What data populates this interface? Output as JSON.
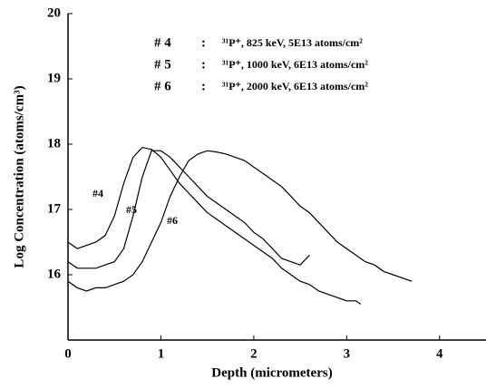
{
  "chart_data": {
    "type": "line",
    "x_label": "Depth (micrometers)",
    "y_label": "Log Concentration (atoms/cm³)",
    "xlim": [
      0,
      4.5
    ],
    "xticks": [
      0,
      1,
      2,
      3,
      4
    ],
    "ylim": [
      15,
      20
    ],
    "yticks": [
      16,
      17,
      18,
      19,
      20
    ],
    "series": [
      {
        "name": "# 4",
        "description": "³¹P⁺, 825 keV, 5E13 atoms/cm²",
        "color": "#000000",
        "x": [
          0,
          0.1,
          0.2,
          0.3,
          0.4,
          0.5,
          0.6,
          0.7,
          0.8,
          0.9,
          1.0,
          1.1,
          1.2,
          1.3,
          1.4,
          1.5,
          1.6,
          1.7,
          1.8,
          1.9,
          2.0,
          2.1,
          2.2,
          2.3,
          2.4,
          2.5,
          2.6,
          2.7,
          2.8,
          2.9,
          3.0,
          3.1,
          3.15
        ],
        "values": [
          16.5,
          16.4,
          16.45,
          16.5,
          16.6,
          16.9,
          17.4,
          17.8,
          17.95,
          17.92,
          17.8,
          17.6,
          17.4,
          17.25,
          17.1,
          16.95,
          16.85,
          16.75,
          16.65,
          16.55,
          16.45,
          16.35,
          16.25,
          16.1,
          16.0,
          15.9,
          15.85,
          15.75,
          15.7,
          15.65,
          15.6,
          15.6,
          15.55
        ]
      },
      {
        "name": "# 5",
        "description": "³¹P⁺, 1000 keV, 6E13 atoms/cm²",
        "color": "#000000",
        "x": [
          0,
          0.1,
          0.2,
          0.3,
          0.4,
          0.5,
          0.6,
          0.7,
          0.8,
          0.9,
          1.0,
          1.1,
          1.2,
          1.3,
          1.4,
          1.5,
          1.6,
          1.7,
          1.8,
          1.9,
          2.0,
          2.1,
          2.2,
          2.3,
          2.4,
          2.5,
          2.6
        ],
        "values": [
          16.2,
          16.1,
          16.1,
          16.1,
          16.15,
          16.2,
          16.4,
          16.9,
          17.5,
          17.9,
          17.9,
          17.8,
          17.65,
          17.5,
          17.35,
          17.2,
          17.1,
          17.0,
          16.9,
          16.8,
          16.65,
          16.55,
          16.4,
          16.25,
          16.2,
          16.15,
          16.3
        ]
      },
      {
        "name": "# 6",
        "description": "³¹P⁺, 2000 keV, 6E13 atoms/cm²",
        "color": "#000000",
        "x": [
          0,
          0.1,
          0.2,
          0.3,
          0.4,
          0.5,
          0.6,
          0.7,
          0.8,
          0.9,
          1.0,
          1.1,
          1.2,
          1.3,
          1.4,
          1.5,
          1.6,
          1.7,
          1.8,
          1.9,
          2.0,
          2.1,
          2.2,
          2.3,
          2.4,
          2.5,
          2.6,
          2.7,
          2.8,
          2.9,
          3.0,
          3.1,
          3.2,
          3.3,
          3.4,
          3.5,
          3.6,
          3.7
        ],
        "values": [
          15.9,
          15.8,
          15.75,
          15.8,
          15.8,
          15.85,
          15.9,
          16.0,
          16.2,
          16.5,
          16.8,
          17.2,
          17.5,
          17.75,
          17.85,
          17.9,
          17.88,
          17.85,
          17.8,
          17.75,
          17.65,
          17.55,
          17.45,
          17.35,
          17.2,
          17.05,
          16.95,
          16.8,
          16.65,
          16.5,
          16.4,
          16.3,
          16.2,
          16.15,
          16.05,
          16.0,
          15.95,
          15.9
        ]
      }
    ],
    "annotations": [
      "#4",
      "#5",
      "#6"
    ]
  }
}
